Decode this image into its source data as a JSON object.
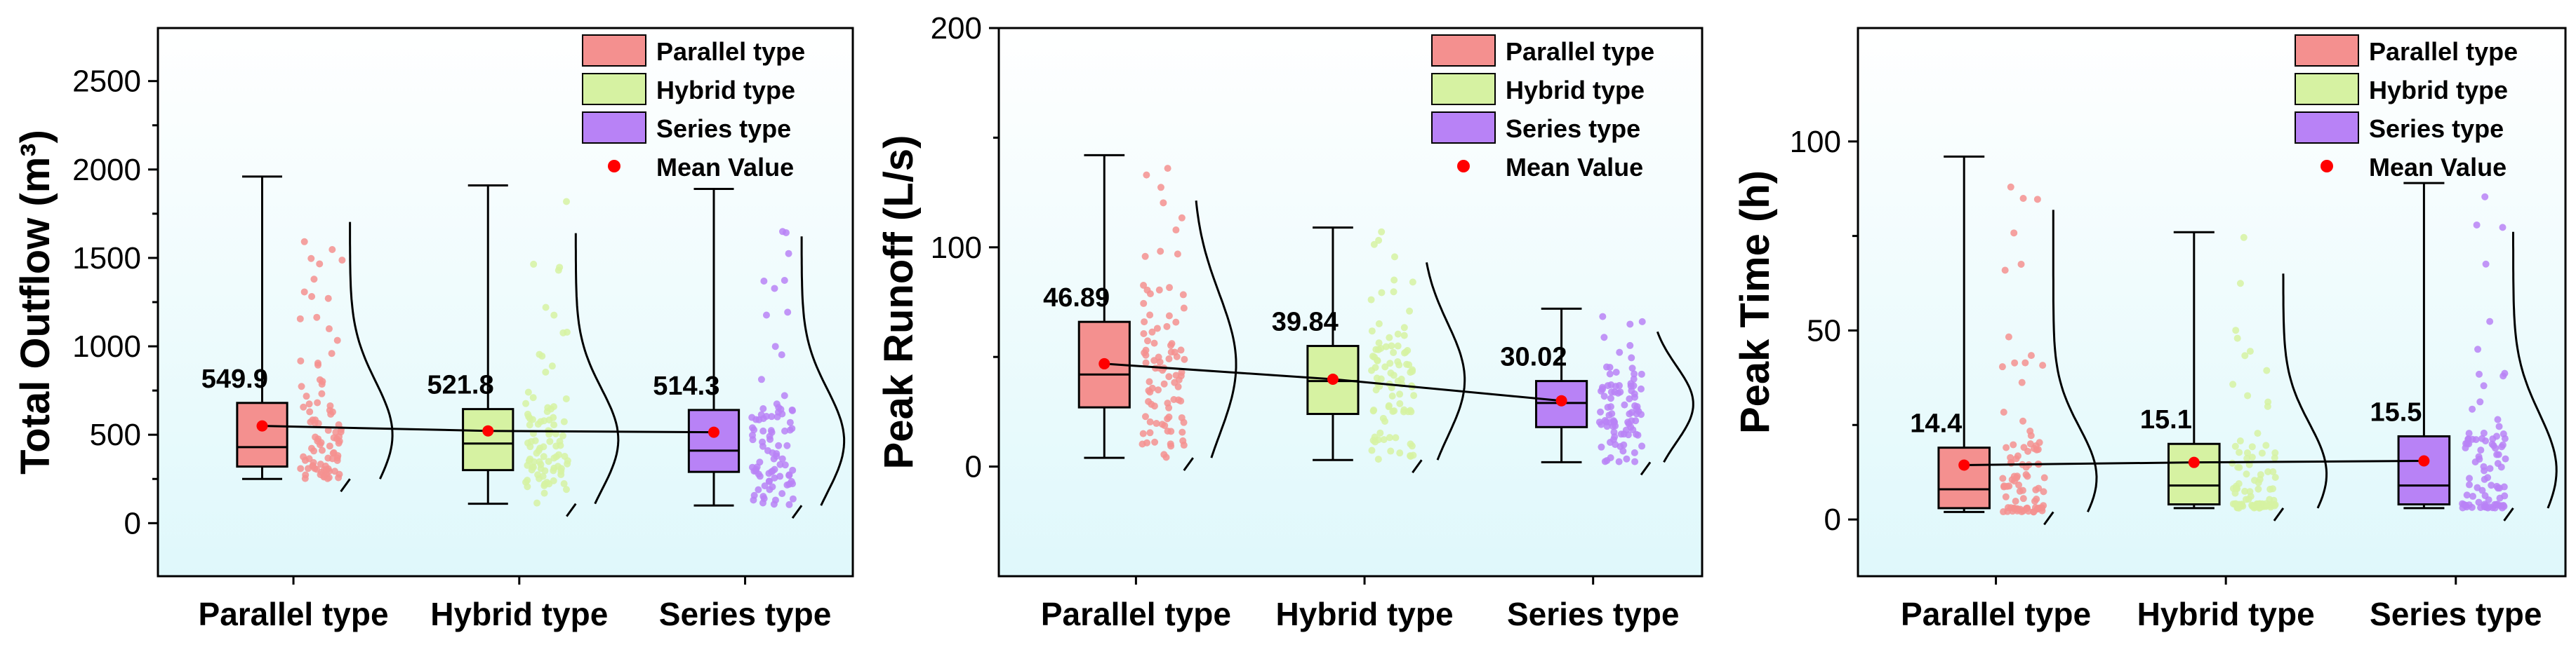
{
  "colors": {
    "parallel": "#f4908f",
    "hybrid": "#d6f2a2",
    "series": "#b882f6",
    "mean": "#ff0000",
    "plot_bg_top": "#ffffff",
    "plot_bg_bottom": "#dff8fb"
  },
  "chart_data": [
    {
      "type": "box",
      "ylabel": "Total Outflow (m³)",
      "ylim": [
        -300,
        2800
      ],
      "yticks": [
        0,
        500,
        1000,
        1500,
        2000,
        2500
      ],
      "categories": [
        "Parallel type",
        "Hybrid type",
        "Series type"
      ],
      "boxes": [
        {
          "name": "Parallel type",
          "min": 250,
          "q1": 320,
          "median": 430,
          "q3": 680,
          "max": 1960,
          "mean": 549.9,
          "mean_label": "549.9"
        },
        {
          "name": "Hybrid type",
          "min": 110,
          "q1": 300,
          "median": 450,
          "q3": 645,
          "max": 1910,
          "mean": 521.8,
          "mean_label": "521.8"
        },
        {
          "name": "Series type",
          "min": 100,
          "q1": 290,
          "median": 410,
          "q3": 640,
          "max": 1890,
          "mean": 514.3,
          "mean_label": "514.3"
        }
      ],
      "legend": [
        "Parallel type",
        "Hybrid type",
        "Series type",
        "Mean Value"
      ]
    },
    {
      "type": "box",
      "ylabel": "Peak Runoff (L/s)",
      "ylim": [
        -50,
        200
      ],
      "yticks": [
        0,
        100,
        200
      ],
      "categories": [
        "Parallel type",
        "Hybrid type",
        "Series type"
      ],
      "boxes": [
        {
          "name": "Parallel type",
          "min": 4,
          "q1": 27,
          "median": 42,
          "q3": 66,
          "max": 142,
          "mean": 46.89,
          "mean_label": "46.89"
        },
        {
          "name": "Hybrid type",
          "min": 3,
          "q1": 24,
          "median": 39,
          "q3": 55,
          "max": 109,
          "mean": 39.84,
          "mean_label": "39.84"
        },
        {
          "name": "Series type",
          "min": 2,
          "q1": 18,
          "median": 29,
          "q3": 39,
          "max": 72,
          "mean": 30.02,
          "mean_label": "30.02"
        }
      ],
      "legend": [
        "Parallel type",
        "Hybrid type",
        "Series type",
        "Mean Value"
      ]
    },
    {
      "type": "box",
      "ylabel": "Peak Time (h)",
      "ylim": [
        -15,
        130
      ],
      "yticks": [
        0,
        50,
        100
      ],
      "categories": [
        "Parallel type",
        "Hybrid type",
        "Series type"
      ],
      "boxes": [
        {
          "name": "Parallel type",
          "min": 2,
          "q1": 3,
          "median": 8,
          "q3": 19,
          "max": 96,
          "mean": 14.4,
          "mean_label": "14.4"
        },
        {
          "name": "Hybrid type",
          "min": 3,
          "q1": 4,
          "median": 9,
          "q3": 20,
          "max": 76,
          "mean": 15.1,
          "mean_label": "15.1"
        },
        {
          "name": "Series type",
          "min": 3,
          "q1": 4,
          "median": 9,
          "q3": 22,
          "max": 89,
          "mean": 15.5,
          "mean_label": "15.5"
        }
      ],
      "legend": [
        "Parallel type",
        "Hybrid type",
        "Series type",
        "Mean Value"
      ]
    }
  ]
}
